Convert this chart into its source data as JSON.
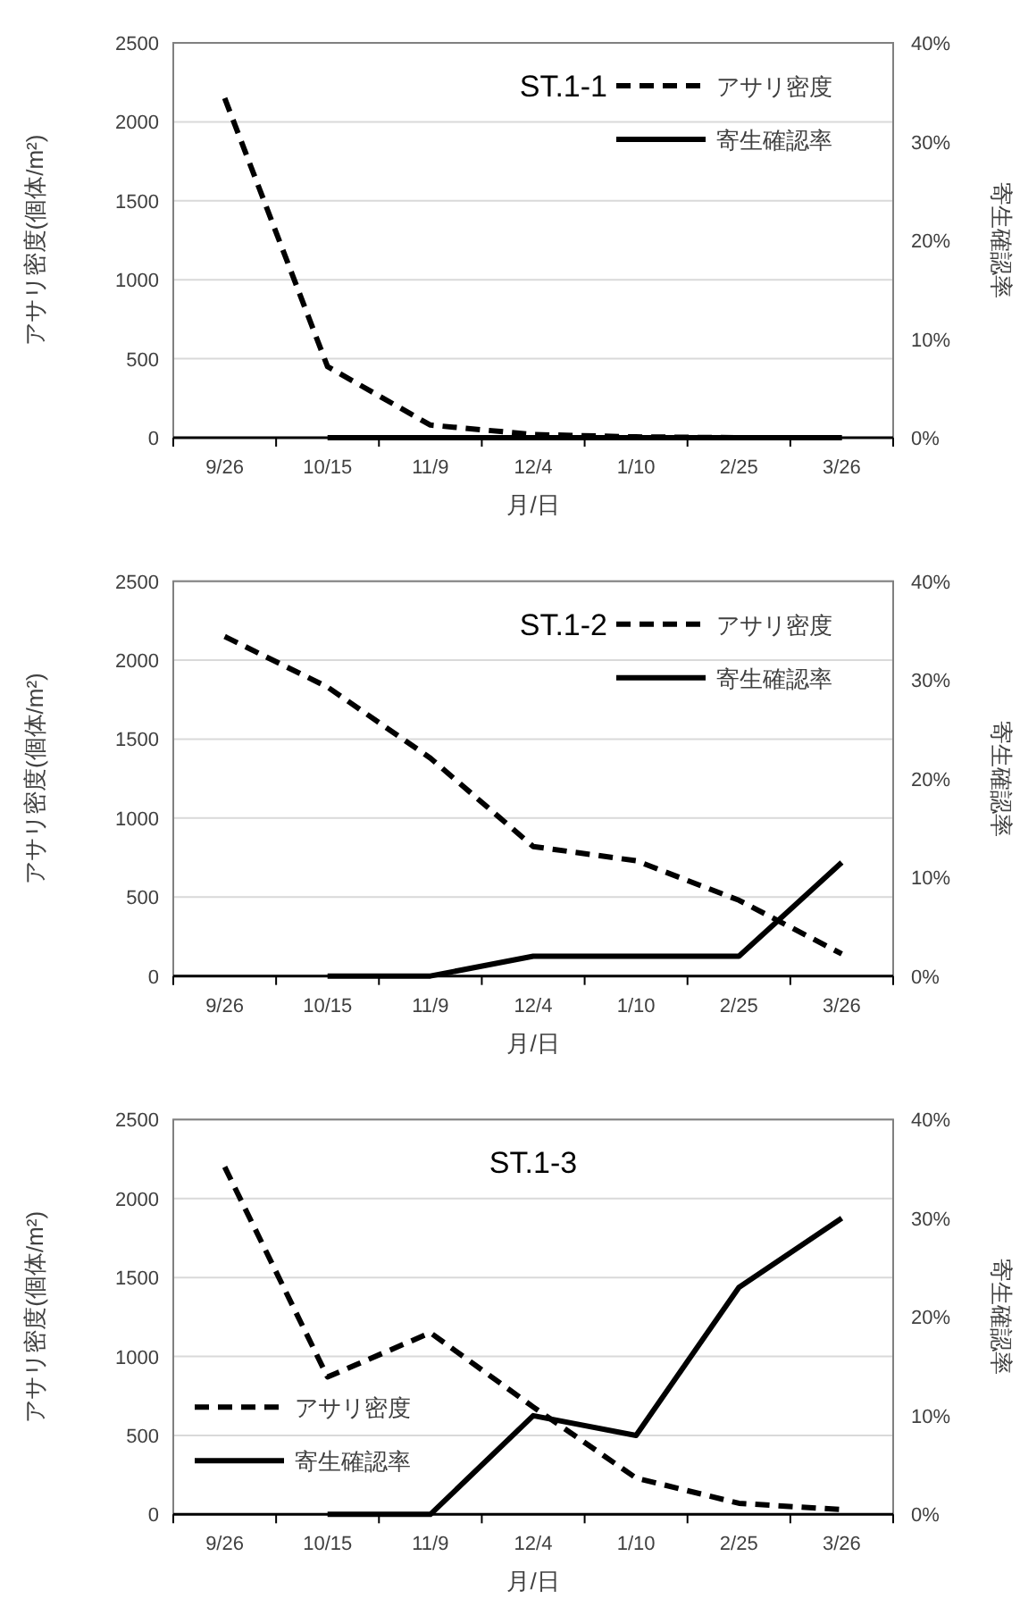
{
  "chart_data": [
    {
      "type": "line",
      "title": "ST.1-1",
      "xlabel": "月/日",
      "ylabel": "アサリ密度(個体/m²)",
      "y2label": "寄生確認率",
      "categories": [
        "9/26",
        "10/15",
        "11/9",
        "12/4",
        "1/10",
        "2/25",
        "3/26"
      ],
      "series": [
        {
          "name": "アサリ密度",
          "color": "#000000",
          "line_style": "dashed",
          "values": [
            2150,
            450,
            80,
            20,
            5,
            0,
            0
          ]
        },
        {
          "name": "寄生確認率",
          "color": "#000000",
          "line_style": "solid",
          "axis": "y2",
          "values": [
            null,
            0,
            0,
            0,
            0,
            0,
            0
          ]
        }
      ],
      "ylim": [
        0,
        2500
      ],
      "yticks": [
        0,
        500,
        1000,
        1500,
        2000,
        2500
      ],
      "y2lim": [
        0,
        40
      ],
      "y2ticks": [
        {
          "value": 0,
          "label": "0%"
        },
        {
          "value": 10,
          "label": "10%"
        },
        {
          "value": 20,
          "label": "20%"
        },
        {
          "value": 30,
          "label": "30%"
        },
        {
          "value": 40,
          "label": "40%"
        }
      ],
      "grid": "y",
      "legend": "top right"
    },
    {
      "type": "line",
      "title": "ST.1-2",
      "xlabel": "月/日",
      "ylabel": "アサリ密度(個体/m²)",
      "y2label": "寄生確認率",
      "categories": [
        "9/26",
        "10/15",
        "11/9",
        "12/4",
        "1/10",
        "2/25",
        "3/26"
      ],
      "series": [
        {
          "name": "アサリ密度",
          "color": "#000000",
          "line_style": "dashed",
          "values": [
            2150,
            1830,
            1380,
            820,
            730,
            480,
            140
          ]
        },
        {
          "name": "寄生確認率",
          "color": "#000000",
          "line_style": "solid",
          "axis": "y2",
          "values": [
            null,
            0,
            0,
            2,
            2,
            2,
            11.5
          ]
        }
      ],
      "ylim": [
        0,
        2500
      ],
      "yticks": [
        0,
        500,
        1000,
        1500,
        2000,
        2500
      ],
      "y2lim": [
        0,
        40
      ],
      "y2ticks": [
        {
          "value": 0,
          "label": "0%"
        },
        {
          "value": 10,
          "label": "10%"
        },
        {
          "value": 20,
          "label": "20%"
        },
        {
          "value": 30,
          "label": "30%"
        },
        {
          "value": 40,
          "label": "40%"
        }
      ],
      "grid": "y",
      "legend": "top right"
    },
    {
      "type": "line",
      "title": "ST.1-3",
      "xlabel": "月/日",
      "ylabel": "アサリ密度(個体/m²)",
      "y2label": "寄生確認率",
      "categories": [
        "9/26",
        "10/15",
        "11/9",
        "12/4",
        "1/10",
        "2/25",
        "3/26"
      ],
      "series": [
        {
          "name": "アサリ密度",
          "color": "#000000",
          "line_style": "dashed",
          "values": [
            2200,
            870,
            1150,
            680,
            230,
            70,
            30
          ]
        },
        {
          "name": "寄生確認率",
          "color": "#000000",
          "line_style": "solid",
          "axis": "y2",
          "values": [
            null,
            0,
            0,
            10,
            8,
            23,
            30
          ]
        }
      ],
      "ylim": [
        0,
        2500
      ],
      "yticks": [
        0,
        500,
        1000,
        1500,
        2000,
        2500
      ],
      "y2lim": [
        0,
        40
      ],
      "y2ticks": [
        {
          "value": 0,
          "label": "0%"
        },
        {
          "value": 10,
          "label": "10%"
        },
        {
          "value": 20,
          "label": "20%"
        },
        {
          "value": 30,
          "label": "30%"
        },
        {
          "value": 40,
          "label": "40%"
        }
      ],
      "grid": "y",
      "legend": "bottom left"
    }
  ]
}
